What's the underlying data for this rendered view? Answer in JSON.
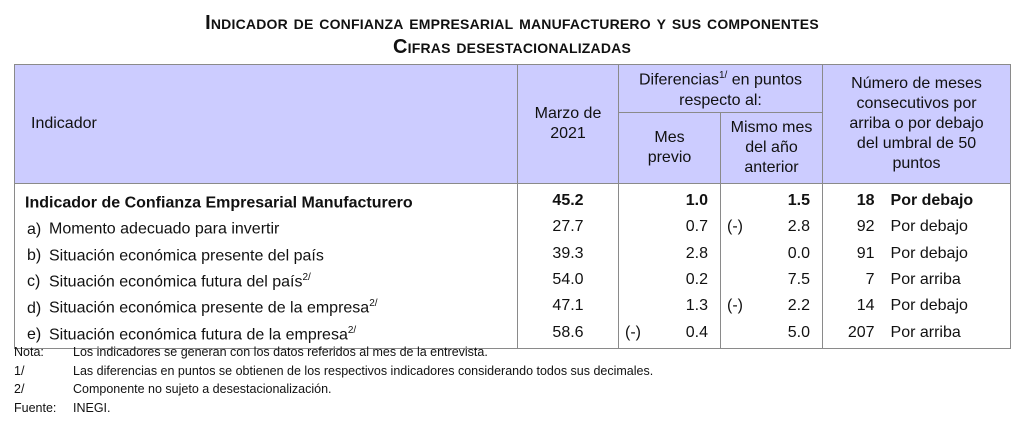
{
  "title": "Indicador de confianza empresarial manufacturero y sus componentes",
  "subtitle": "Cifras desestacionalizadas",
  "headers": {
    "indicador": "Indicador",
    "marzo": "Marzo de 2021",
    "diferencias": "Diferencias",
    "diferencias_sup": "1/",
    "diferencias_rest": " en puntos respecto al:",
    "mes_previo": "Mes previo",
    "mismo_mes": "Mismo mes del año anterior",
    "meses": "Número de meses consecutivos por arriba o por debajo del umbral de 50 puntos"
  },
  "rows": [
    {
      "letter": "",
      "label": "Indicador de Confianza Empresarial Manufacturero",
      "sup": "",
      "value": "45.2",
      "prev_sign": "",
      "prev": "1.0",
      "year_sign": "",
      "year": "1.5",
      "count": "18",
      "position": "Por debajo"
    },
    {
      "letter": "a)",
      "label": "Momento adecuado para invertir",
      "sup": "",
      "value": "27.7",
      "prev_sign": "",
      "prev": "0.7",
      "year_sign": "(-)",
      "year": "2.8",
      "count": "92",
      "position": "Por debajo"
    },
    {
      "letter": "b)",
      "label": "Situación económica presente del país",
      "sup": "",
      "value": "39.3",
      "prev_sign": "",
      "prev": "2.8",
      "year_sign": "",
      "year": "0.0",
      "count": "91",
      "position": "Por debajo"
    },
    {
      "letter": "c)",
      "label": "Situación económica futura del país",
      "sup": "2/",
      "value": "54.0",
      "prev_sign": "",
      "prev": "0.2",
      "year_sign": "",
      "year": "7.5",
      "count": "7",
      "position": "Por arriba"
    },
    {
      "letter": "d)",
      "label": "Situación económica presente de la empresa",
      "sup": "2/",
      "value": "47.1",
      "prev_sign": "",
      "prev": "1.3",
      "year_sign": "(-)",
      "year": "2.2",
      "count": "14",
      "position": "Por debajo"
    },
    {
      "letter": "e)",
      "label": "Situación económica futura de la empresa",
      "sup": "2/",
      "value": "58.6",
      "prev_sign": "(-)",
      "prev": "0.4",
      "year_sign": "",
      "year": "5.0",
      "count": "207",
      "position": "Por arriba"
    }
  ],
  "notes": [
    {
      "key": "Nota:",
      "text": "Los indicadores se generan con los datos referidos al mes de la entrevista."
    },
    {
      "key": "1/",
      "text": "Las diferencias en puntos se obtienen de los respectivos indicadores considerando todos sus decimales."
    },
    {
      "key": "2/",
      "text": "Componente no sujeto a desestacionalización."
    },
    {
      "key": "Fuente:",
      "text": "INEGI."
    }
  ]
}
